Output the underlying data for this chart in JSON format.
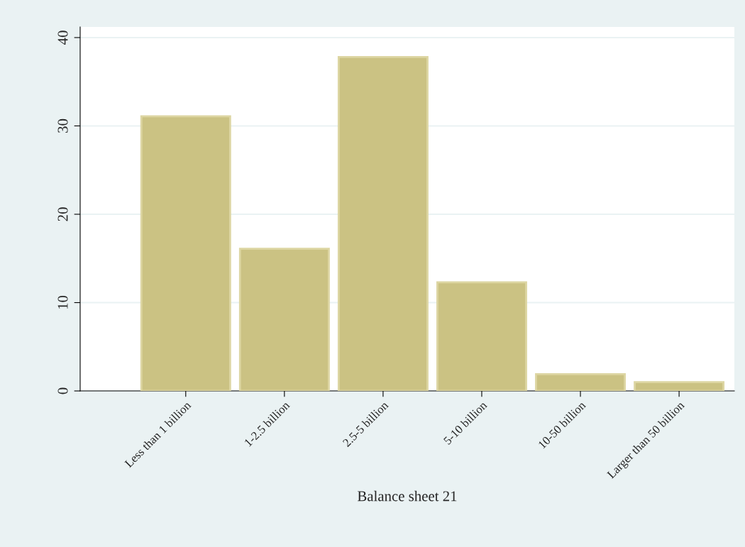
{
  "chart_data": {
    "type": "bar",
    "xlabel": "Balance sheet 21",
    "categories": [
      "Less than 1 billion",
      "1-2.5 billion",
      "2.5-5 billion",
      "5-10 billion",
      "10-50 billion",
      "Larger than 50 billion"
    ],
    "values": [
      31.1,
      16.1,
      37.8,
      12.3,
      1.9,
      1.0
    ],
    "color": "#cbc283",
    "ylim": [
      0,
      41.2
    ],
    "yticks": [
      0,
      10,
      20,
      30,
      40
    ],
    "grid": "y"
  }
}
